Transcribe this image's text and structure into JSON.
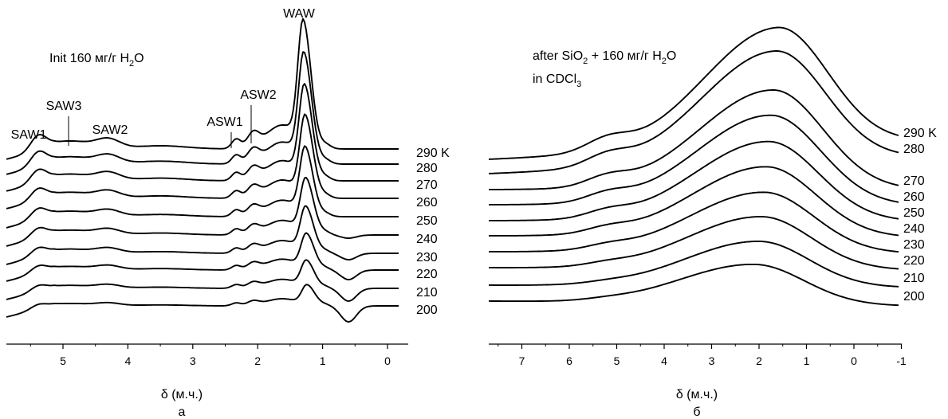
{
  "chart_data": [
    {
      "type": "line",
      "panel_label": "а",
      "xlabel": "δ (м.ч.)",
      "xlim": [
        6.0,
        -0.5
      ],
      "x_ticks": [
        5,
        4,
        3,
        2,
        1,
        0
      ],
      "x_tick_labels": [
        "5",
        "4",
        "3",
        "2",
        "1",
        "0"
      ],
      "annotation_lines": [
        {
          "text": "Init 160 мг/г H",
          "sub": "2",
          "tail": "O"
        }
      ],
      "peak_labels": [
        "SAW1",
        "SAW3",
        "SAW2",
        "ASW1",
        "ASW2",
        "WAW"
      ],
      "peaks": [
        {
          "name": "SAW1",
          "x": 5.4
        },
        {
          "name": "SAW3",
          "x": 4.85
        },
        {
          "name": "SAW2",
          "x": 4.3
        },
        {
          "name": "ASW1",
          "x": 2.35
        },
        {
          "name": "ASW2",
          "x": 2.07
        },
        {
          "name": "WAW",
          "x": 1.3
        }
      ],
      "series": [
        {
          "name": "290 K",
          "peak_x": 1.3
        },
        {
          "name": "280",
          "peak_x": 1.29
        },
        {
          "name": "270",
          "peak_x": 1.28
        },
        {
          "name": "260",
          "peak_x": 1.27
        },
        {
          "name": "250",
          "peak_x": 1.27
        },
        {
          "name": "240",
          "peak_x": 1.26
        },
        {
          "name": "230",
          "peak_x": 1.26
        },
        {
          "name": "220",
          "peak_x": 1.25
        },
        {
          "name": "210",
          "peak_x": 1.25
        },
        {
          "name": "200",
          "peak_x": 1.24
        }
      ]
    },
    {
      "type": "line",
      "panel_label": "б",
      "xlabel": "δ (м.ч.)",
      "xlim": [
        7.7,
        -1.0
      ],
      "x_ticks": [
        7,
        6,
        5,
        4,
        3,
        2,
        1,
        0,
        -1
      ],
      "x_tick_labels": [
        "7",
        "6",
        "5",
        "4",
        "3",
        "2",
        "1",
        "0",
        "-1"
      ],
      "annotation_lines": [
        {
          "text": "after SiO",
          "sub": "2",
          "tail": " + 160 мг/г H",
          "sub2": "2",
          "tail2": "O"
        },
        {
          "text": "in CDCl",
          "sub": "3",
          "tail": ""
        }
      ],
      "series": [
        {
          "name": "290 K",
          "peak_x": 1.6
        },
        {
          "name": "280",
          "peak_x": 1.65
        },
        {
          "name": "270",
          "peak_x": 1.7
        },
        {
          "name": "260",
          "peak_x": 1.75
        },
        {
          "name": "250",
          "peak_x": 1.8
        },
        {
          "name": "240",
          "peak_x": 1.85
        },
        {
          "name": "230",
          "peak_x": 1.9
        },
        {
          "name": "220",
          "peak_x": 1.95
        },
        {
          "name": "210",
          "peak_x": 2.0
        },
        {
          "name": "200",
          "peak_x": 2.1
        }
      ]
    }
  ]
}
